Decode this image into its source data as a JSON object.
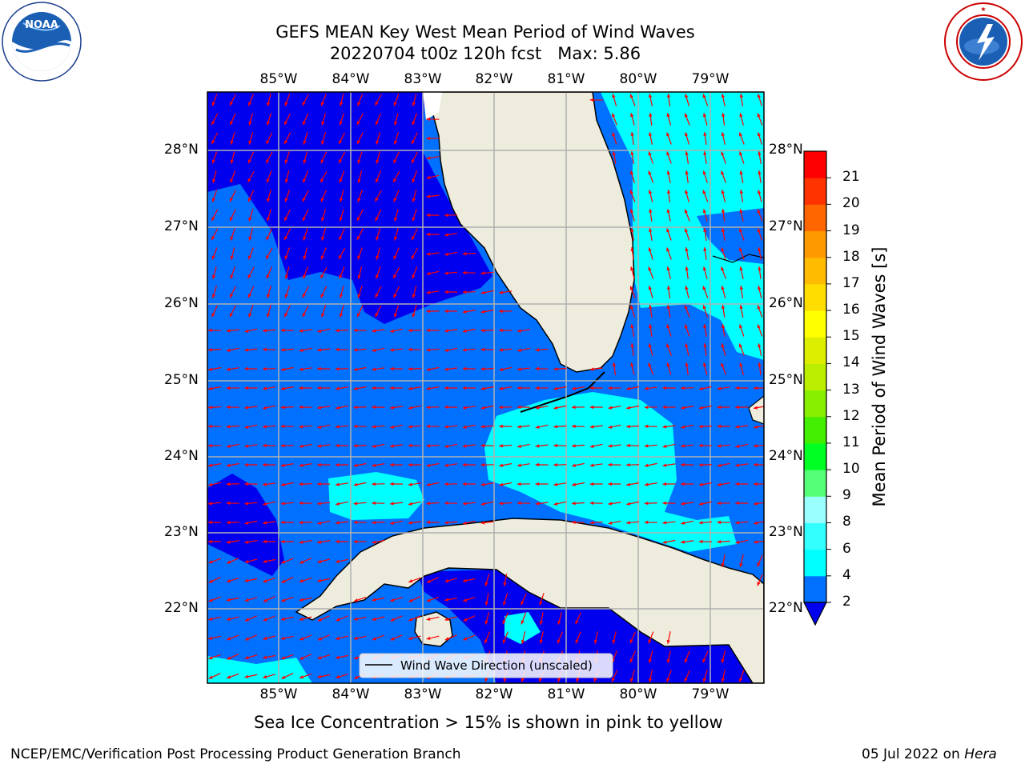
{
  "title": {
    "line1": "GEFS MEAN Key West Mean Period of Wind Waves",
    "line2": "20220704 t00z 120h fcst   Max: 5.86"
  },
  "map": {
    "lon_labels": [
      "85°W",
      "84°W",
      "83°W",
      "82°W",
      "81°W",
      "80°W",
      "79°W"
    ],
    "lat_labels": [
      "28°N",
      "27°N",
      "26°N",
      "25°N",
      "24°N",
      "23°N",
      "22°N"
    ],
    "legend_label": "Wind Wave Direction (unscaled)",
    "arrow_color": "#ff0000",
    "land_color": "#eeeddd",
    "colors": {
      "level_2_4": "#0000ee",
      "level_4_6": "#0070ff",
      "level_6_8": "#00ffff",
      "level_8_9": "#66ffff"
    }
  },
  "colorbar": {
    "label": "Mean Period of Wind Waves [s]",
    "ticks": [
      "2",
      "4",
      "6",
      "8",
      "9",
      "10",
      "11",
      "12",
      "13",
      "14",
      "15",
      "16",
      "17",
      "18",
      "19",
      "20",
      "21"
    ],
    "colors": [
      "#0070ff",
      "#00ffff",
      "#33ffff",
      "#99ffff",
      "#55ff77",
      "#00ff22",
      "#44ee00",
      "#88ee00",
      "#bbee00",
      "#ddee00",
      "#ffff00",
      "#ffdd00",
      "#ffbb00",
      "#ff9900",
      "#ff6600",
      "#ff3300",
      "#ff0000"
    ],
    "under_color": "#0000ee"
  },
  "caption": "Sea Ice Concentration > 15% is shown in pink to yellow",
  "footer": {
    "left": "NCEP/EMC/Verification Post Processing Product Generation Branch",
    "date": "05 Jul 2022 on ",
    "machine": "Hera"
  },
  "logos": {
    "noaa_text": "NOAA",
    "noaa_ring_text": "NATIONAL OCEANIC AND ATMOSPHERIC ADMINISTRATION · U.S. DEPARTMENT OF COMMERCE",
    "nws_ring_text": "NATIONAL WEATHER SERVICE"
  }
}
